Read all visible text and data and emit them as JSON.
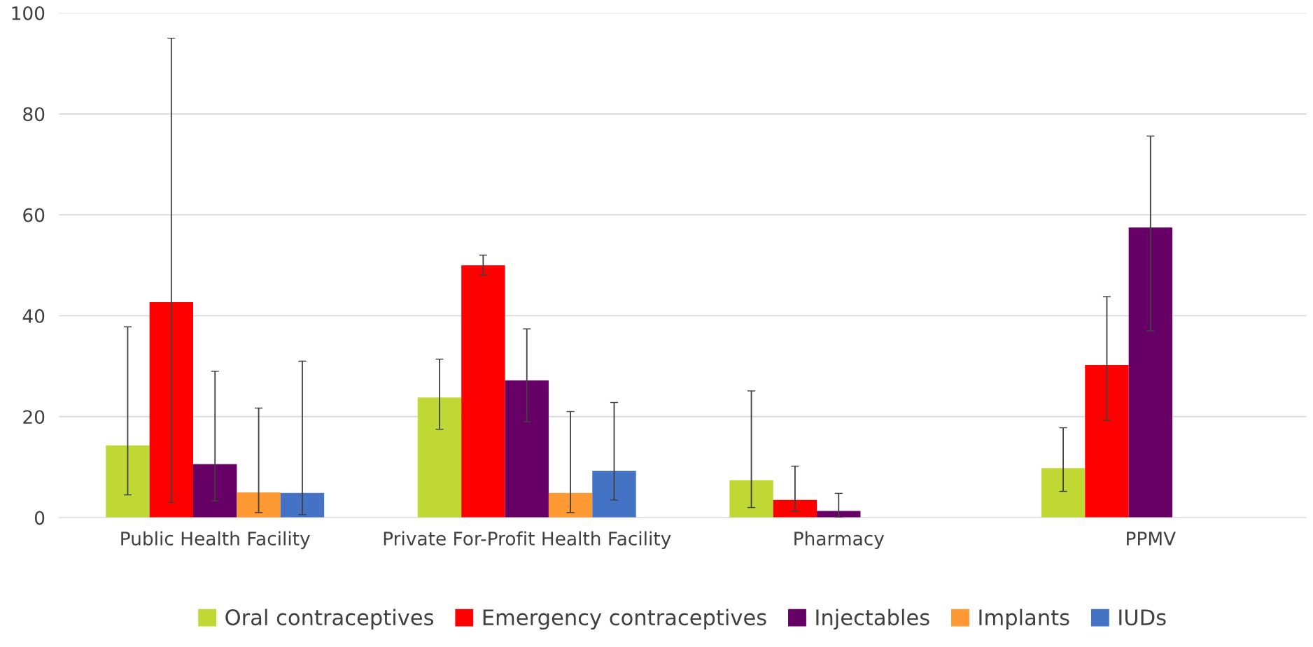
{
  "chart_data": {
    "type": "bar",
    "categories": [
      "Public Health Facility",
      "Private For-Profit Health Facility",
      "Pharmacy",
      "PPMV"
    ],
    "series": [
      {
        "name": "Oral contraceptives",
        "color": "#c0d834",
        "values": [
          14.3,
          23.8,
          7.4,
          9.8
        ],
        "errors": [
          [
            4.5,
            37.8
          ],
          [
            17.5,
            31.4
          ],
          [
            2.0,
            25.1
          ],
          [
            5.2,
            17.8
          ]
        ]
      },
      {
        "name": "Emergency contraceptives",
        "color": "#ff0000",
        "values": [
          42.7,
          50.0,
          3.5,
          30.2
        ],
        "errors": [
          [
            3.0,
            95.0
          ],
          [
            48.0,
            52.0
          ],
          [
            1.2,
            10.2
          ],
          [
            19.3,
            43.8
          ]
        ]
      },
      {
        "name": "Injectables",
        "color": "#660066",
        "values": [
          10.6,
          27.2,
          1.3,
          57.5
        ],
        "errors": [
          [
            3.3,
            29.0
          ],
          [
            19.0,
            37.4
          ],
          [
            0.0,
            4.8
          ],
          [
            37.0,
            75.6
          ]
        ]
      },
      {
        "name": "Implants",
        "color": "#ff9933",
        "values": [
          5.0,
          4.9,
          null,
          null
        ],
        "errors": [
          [
            1.0,
            21.7
          ],
          [
            1.0,
            21.0
          ],
          null,
          null
        ]
      },
      {
        "name": "IUDs",
        "color": "#4472c4",
        "values": [
          4.9,
          9.3,
          null,
          null
        ],
        "errors": [
          [
            0.6,
            31.0
          ],
          [
            3.5,
            22.8
          ],
          null,
          null
        ]
      }
    ],
    "ylim": [
      0,
      100
    ],
    "yticks": [
      0,
      20,
      40,
      60,
      80,
      100
    ],
    "grid": "y",
    "legend": "bottom"
  }
}
